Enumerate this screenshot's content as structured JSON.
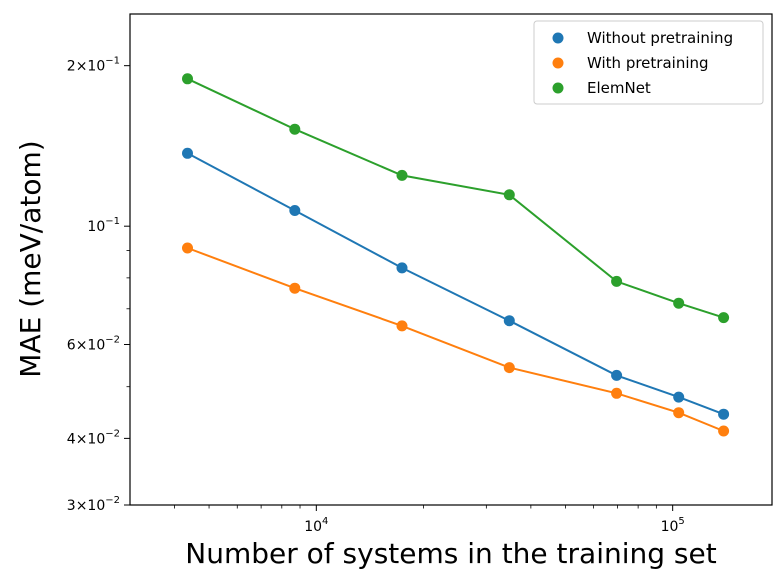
{
  "chart_data": {
    "type": "line",
    "xlabel": "Number of systems in the training set",
    "ylabel": "MAE (meV/atom)",
    "xscale": "log",
    "yscale": "log",
    "xlim": [
      3000,
      190000
    ],
    "ylim": [
      0.03,
      0.25
    ],
    "x_major_ticks": [
      {
        "value": 10000,
        "base": "10",
        "exp": "4"
      },
      {
        "value": 100000,
        "base": "10",
        "exp": "5"
      }
    ],
    "y_major_ticks": [
      {
        "value": 0.03,
        "mant": "3",
        "base": "10",
        "exp": "−2"
      },
      {
        "value": 0.04,
        "mant": "4",
        "base": "10",
        "exp": "−2"
      },
      {
        "value": 0.06,
        "mant": "6",
        "base": "10",
        "exp": "−2"
      },
      {
        "value": 0.1,
        "mant": "",
        "base": "10",
        "exp": "−1"
      },
      {
        "value": 0.2,
        "mant": "2",
        "base": "10",
        "exp": "−1"
      }
    ],
    "y_minor_ticks": [
      0.05,
      0.07,
      0.08,
      0.09
    ],
    "legend_position": "top-right",
    "grid": false,
    "series": [
      {
        "name": "Without pretraining",
        "color": "#1f77b4",
        "x": [
          4350,
          8700,
          17400,
          34800,
          69600,
          104000,
          139000
        ],
        "y": [
          0.137,
          0.107,
          0.0835,
          0.0665,
          0.0525,
          0.0478,
          0.0444
        ]
      },
      {
        "name": "With pretraining",
        "color": "#ff7f0e",
        "x": [
          4350,
          8700,
          17400,
          34800,
          69600,
          104000,
          139000
        ],
        "y": [
          0.091,
          0.0765,
          0.065,
          0.0543,
          0.0486,
          0.0447,
          0.0413
        ]
      },
      {
        "name": "ElemNet",
        "color": "#2ca02c",
        "x": [
          4350,
          8700,
          17400,
          34800,
          69600,
          104000,
          139000
        ],
        "y": [
          0.189,
          0.152,
          0.1245,
          0.1145,
          0.0788,
          0.0717,
          0.0674
        ]
      }
    ]
  }
}
